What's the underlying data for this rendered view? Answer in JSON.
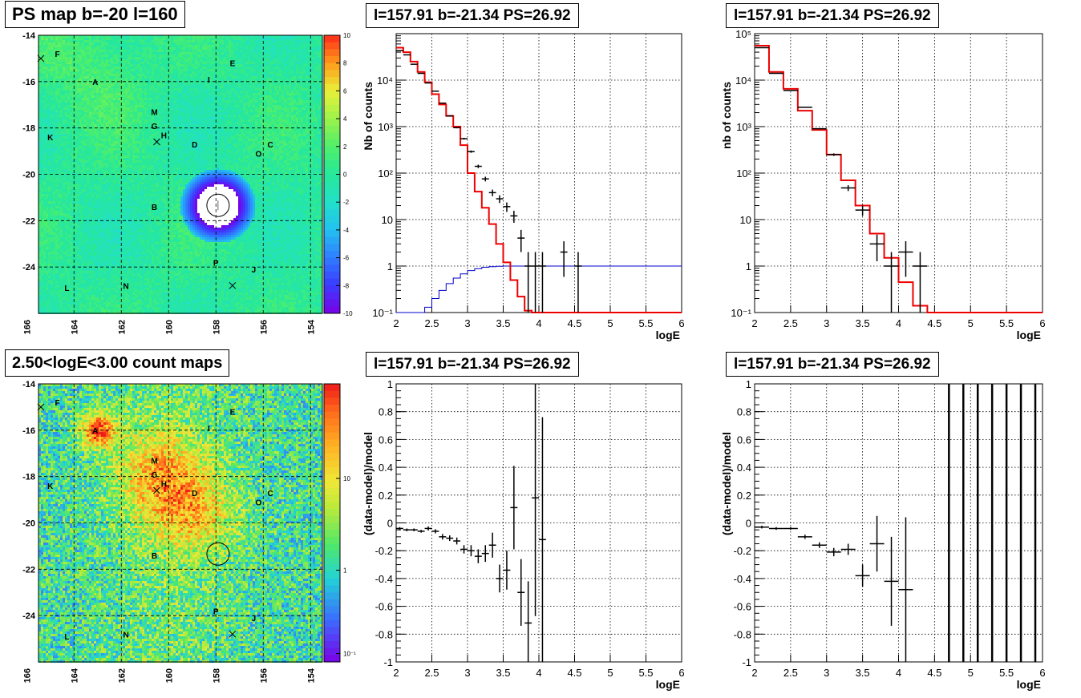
{
  "titles": {
    "map_ps": "PS map b=-20 l=160",
    "map_counts": "2.50<logE<3.00 count maps",
    "spectrum_left": "l=157.91 b=-21.34 PS=26.92",
    "spectrum_right": "l=157.91 b=-21.34 PS=26.92",
    "residual_left": "l=157.91 b=-21.34 PS=26.92",
    "residual_right": "l=157.91 b=-21.34 PS=26.92"
  },
  "chart_data": [
    {
      "type": "heatmap",
      "title": "PS map b=-20 l=160",
      "xlim": [
        165.5,
        153.5
      ],
      "ylim": [
        -26,
        -14
      ],
      "x_ticks": [
        "166",
        "164",
        "162",
        "160",
        "158",
        "156",
        "154"
      ],
      "y_ticks": [
        "-14",
        "-16",
        "-18",
        "-20",
        "-22",
        "-24"
      ],
      "colorbar": {
        "min": -10,
        "max": 10,
        "ticks": [
          "10",
          "8",
          "6",
          "4",
          "2",
          "0",
          "-2",
          "-4",
          "-6",
          "-8",
          "-10"
        ]
      },
      "point_source": {
        "l": 157.91,
        "b": -21.34
      },
      "labels": [
        {
          "text": "F",
          "l": 164.7,
          "b": -14.8
        },
        {
          "text": "E",
          "l": 157.3,
          "b": -15.2
        },
        {
          "text": "A",
          "l": 163.1,
          "b": -16.0
        },
        {
          "text": "I",
          "l": 158.3,
          "b": -15.9
        },
        {
          "text": "M",
          "l": 160.6,
          "b": -17.3
        },
        {
          "text": "G",
          "l": 160.6,
          "b": -17.9
        },
        {
          "text": "H",
          "l": 160.2,
          "b": -18.3
        },
        {
          "text": "K",
          "l": 165.0,
          "b": -18.4
        },
        {
          "text": "D",
          "l": 158.9,
          "b": -18.7
        },
        {
          "text": "C",
          "l": 155.7,
          "b": -18.7
        },
        {
          "text": "O",
          "l": 156.2,
          "b": -19.1
        },
        {
          "text": "B",
          "l": 160.6,
          "b": -21.4
        },
        {
          "text": "P",
          "l": 158.0,
          "b": -23.8
        },
        {
          "text": "J",
          "l": 156.4,
          "b": -24.1
        },
        {
          "text": "L",
          "l": 164.3,
          "b": -24.9
        },
        {
          "text": "N",
          "l": 161.8,
          "b": -24.8
        }
      ],
      "crosses": [
        {
          "l": 165.4,
          "b": -15.0
        },
        {
          "l": 160.5,
          "b": -18.6
        },
        {
          "l": 157.3,
          "b": -24.8
        }
      ]
    },
    {
      "type": "heatmap",
      "title": "2.50<logE<3.00 count maps",
      "xlim": [
        165.5,
        153.5
      ],
      "ylim": [
        -26,
        -14
      ],
      "x_ticks": [
        "166",
        "164",
        "162",
        "160",
        "158",
        "156",
        "154"
      ],
      "y_ticks": [
        "-14",
        "-16",
        "-18",
        "-20",
        "-22",
        "-24"
      ],
      "colorbar": {
        "scale": "log",
        "ticks": [
          "10",
          "1",
          "10⁻¹"
        ]
      },
      "hotspots": [
        {
          "l": 163.0,
          "b": -16.0
        },
        {
          "l": 160.5,
          "b": -17.8
        },
        {
          "l": 159.0,
          "b": -19.5
        }
      ],
      "point_source": {
        "l": 157.91,
        "b": -21.34
      }
    },
    {
      "type": "line",
      "title": "l=157.91 b=-21.34 PS=26.92",
      "xlabel": "logE",
      "ylabel": "Nb of counts",
      "xlim": [
        2,
        6
      ],
      "ylim": [
        0.1,
        100000
      ],
      "yscale": "log",
      "x_ticks": [
        "2",
        "2.5",
        "3",
        "3.5",
        "4",
        "4.5",
        "5",
        "5.5",
        "6"
      ],
      "y_ticks": [
        "10⁻¹",
        "1",
        "10",
        "10²",
        "10³",
        "10⁴"
      ],
      "grid": true,
      "bin_width": 0.1,
      "model_red": [
        50000,
        40000,
        25000,
        15000,
        9000,
        5000,
        3000,
        1700,
        1000,
        400,
        100,
        40,
        18,
        8,
        3,
        1.2,
        0.5,
        0.22,
        0.11,
        0.1,
        0.1,
        0.1,
        0.1,
        0.1,
        0.1,
        0.1,
        0.1,
        0.1,
        0.1,
        0.1,
        0.1,
        0.1,
        0.1,
        0.1,
        0.1,
        0.1,
        0.1,
        0.1,
        0.1,
        0.1
      ],
      "data_black": [
        {
          "x": 2.05,
          "y": 43000
        },
        {
          "x": 2.15,
          "y": 35000
        },
        {
          "x": 2.25,
          "y": 22000
        },
        {
          "x": 2.35,
          "y": 14000
        },
        {
          "x": 2.45,
          "y": 8700
        },
        {
          "x": 2.55,
          "y": 5800
        },
        {
          "x": 2.65,
          "y": 3200
        },
        {
          "x": 2.75,
          "y": 1700
        },
        {
          "x": 2.85,
          "y": 950
        },
        {
          "x": 2.95,
          "y": 550
        },
        {
          "x": 3.05,
          "y": 290
        },
        {
          "x": 3.15,
          "y": 140
        },
        {
          "x": 3.25,
          "y": 75
        },
        {
          "x": 3.35,
          "y": 38
        },
        {
          "x": 3.45,
          "y": 28
        },
        {
          "x": 3.55,
          "y": 19
        },
        {
          "x": 3.65,
          "y": 12
        },
        {
          "x": 3.75,
          "y": 4
        },
        {
          "x": 3.85,
          "y": 1
        },
        {
          "x": 3.95,
          "y": 1
        },
        {
          "x": 4.05,
          "y": 1
        },
        {
          "x": 4.35,
          "y": 2
        },
        {
          "x": 4.55,
          "y": 1
        }
      ],
      "efficiency_blue": [
        0.1,
        0.1,
        0.1,
        0.1,
        0.13,
        0.2,
        0.3,
        0.42,
        0.55,
        0.68,
        0.8,
        0.88,
        0.94,
        0.97,
        0.99,
        1,
        1,
        1,
        1,
        1,
        1,
        1,
        1,
        1,
        1,
        1,
        1,
        1,
        1,
        1,
        1,
        1,
        1,
        1,
        1,
        1,
        1,
        1,
        1,
        1
      ]
    },
    {
      "type": "line",
      "title": "l=157.91 b=-21.34 PS=26.92",
      "xlabel": "logE",
      "ylabel": "nb of counts",
      "xlim": [
        2,
        6
      ],
      "ylim": [
        0.1,
        100000
      ],
      "yscale": "log",
      "x_ticks": [
        "2",
        "2.5",
        "3",
        "3.5",
        "4",
        "4.5",
        "5",
        "5.5",
        "6"
      ],
      "y_ticks": [
        "10⁻¹",
        "1",
        "10",
        "10²",
        "10³",
        "10⁴",
        "10⁵"
      ],
      "grid": true,
      "bin_width": 0.2,
      "model_red": [
        55000,
        15000,
        6500,
        2200,
        850,
        250,
        70,
        20,
        5,
        1.5,
        0.45,
        0.14,
        0.1,
        0.1,
        0.1,
        0.1,
        0.1,
        0.1,
        0.1,
        0.1
      ],
      "data_black": [
        {
          "x": 2.1,
          "y": 50000
        },
        {
          "x": 2.3,
          "y": 14000
        },
        {
          "x": 2.5,
          "y": 6000
        },
        {
          "x": 2.7,
          "y": 2600
        },
        {
          "x": 2.9,
          "y": 900
        },
        {
          "x": 3.1,
          "y": 250
        },
        {
          "x": 3.3,
          "y": 48
        },
        {
          "x": 3.5,
          "y": 16
        },
        {
          "x": 3.7,
          "y": 3
        },
        {
          "x": 3.9,
          "y": 1
        },
        {
          "x": 4.1,
          "y": 2
        },
        {
          "x": 4.3,
          "y": 1
        }
      ]
    },
    {
      "type": "scatter",
      "title": "l=157.91 b=-21.34 PS=26.92",
      "xlabel": "logE",
      "ylabel": "(data-model)/model",
      "xlim": [
        2,
        6
      ],
      "ylim": [
        -1,
        1
      ],
      "x_ticks": [
        "2",
        "2.5",
        "3",
        "3.5",
        "4",
        "4.5",
        "5",
        "5.5",
        "6"
      ],
      "y_ticks": [
        "-1",
        "-0.8",
        "-0.6",
        "-0.4",
        "-0.2",
        "0",
        "0.2",
        "0.4",
        "0.6",
        "0.8",
        "1"
      ],
      "grid": true,
      "points": [
        {
          "x": 2.05,
          "y": -0.04,
          "err": 0.01
        },
        {
          "x": 2.15,
          "y": -0.05,
          "err": 0.01
        },
        {
          "x": 2.25,
          "y": -0.05,
          "err": 0.01
        },
        {
          "x": 2.35,
          "y": -0.06,
          "err": 0.01
        },
        {
          "x": 2.45,
          "y": -0.04,
          "err": 0.015
        },
        {
          "x": 2.55,
          "y": -0.06,
          "err": 0.015
        },
        {
          "x": 2.65,
          "y": -0.1,
          "err": 0.02
        },
        {
          "x": 2.75,
          "y": -0.11,
          "err": 0.02
        },
        {
          "x": 2.85,
          "y": -0.13,
          "err": 0.025
        },
        {
          "x": 2.95,
          "y": -0.19,
          "err": 0.03
        },
        {
          "x": 3.05,
          "y": -0.2,
          "err": 0.04
        },
        {
          "x": 3.15,
          "y": -0.24,
          "err": 0.05
        },
        {
          "x": 3.25,
          "y": -0.22,
          "err": 0.06
        },
        {
          "x": 3.35,
          "y": -0.16,
          "err": 0.09
        },
        {
          "x": 3.45,
          "y": -0.4,
          "err": 0.1
        },
        {
          "x": 3.55,
          "y": -0.34,
          "err": 0.14
        },
        {
          "x": 3.65,
          "y": 0.11,
          "err": 0.3
        },
        {
          "x": 3.75,
          "y": -0.5,
          "err": 0.24
        },
        {
          "x": 3.85,
          "y": -0.72,
          "err": 0.3
        },
        {
          "x": 3.95,
          "y": 0.18,
          "err": 0.85
        },
        {
          "x": 4.05,
          "y": -0.12,
          "err": 0.88
        }
      ]
    },
    {
      "type": "scatter",
      "title": "l=157.91 b=-21.34 PS=26.92",
      "xlabel": "logE",
      "ylabel": "(data-model)/model",
      "xlim": [
        2,
        6
      ],
      "ylim": [
        -1,
        1
      ],
      "x_ticks": [
        "2",
        "2.5",
        "3",
        "3.5",
        "4",
        "4.5",
        "5",
        "5.5",
        "6"
      ],
      "y_ticks": [
        "-1",
        "-0.8",
        "-0.6",
        "-0.4",
        "-0.2",
        "0",
        "0.2",
        "0.4",
        "0.6",
        "0.8",
        "1"
      ],
      "grid": true,
      "points": [
        {
          "x": 2.1,
          "y": -0.03,
          "err": 0.01
        },
        {
          "x": 2.3,
          "y": -0.04,
          "err": 0.01
        },
        {
          "x": 2.5,
          "y": -0.04,
          "err": 0.01
        },
        {
          "x": 2.7,
          "y": -0.1,
          "err": 0.015
        },
        {
          "x": 2.9,
          "y": -0.16,
          "err": 0.02
        },
        {
          "x": 3.1,
          "y": -0.21,
          "err": 0.03
        },
        {
          "x": 3.3,
          "y": -0.19,
          "err": 0.04
        },
        {
          "x": 3.5,
          "y": -0.38,
          "err": 0.08
        },
        {
          "x": 3.7,
          "y": -0.15,
          "err": 0.2
        },
        {
          "x": 3.9,
          "y": -0.42,
          "err": 0.32
        },
        {
          "x": 4.1,
          "y": -0.48,
          "err": 0.52
        }
      ],
      "full_bars_x": [
        4.7,
        4.9,
        5.1,
        5.3,
        5.5,
        5.7,
        5.9
      ]
    }
  ]
}
